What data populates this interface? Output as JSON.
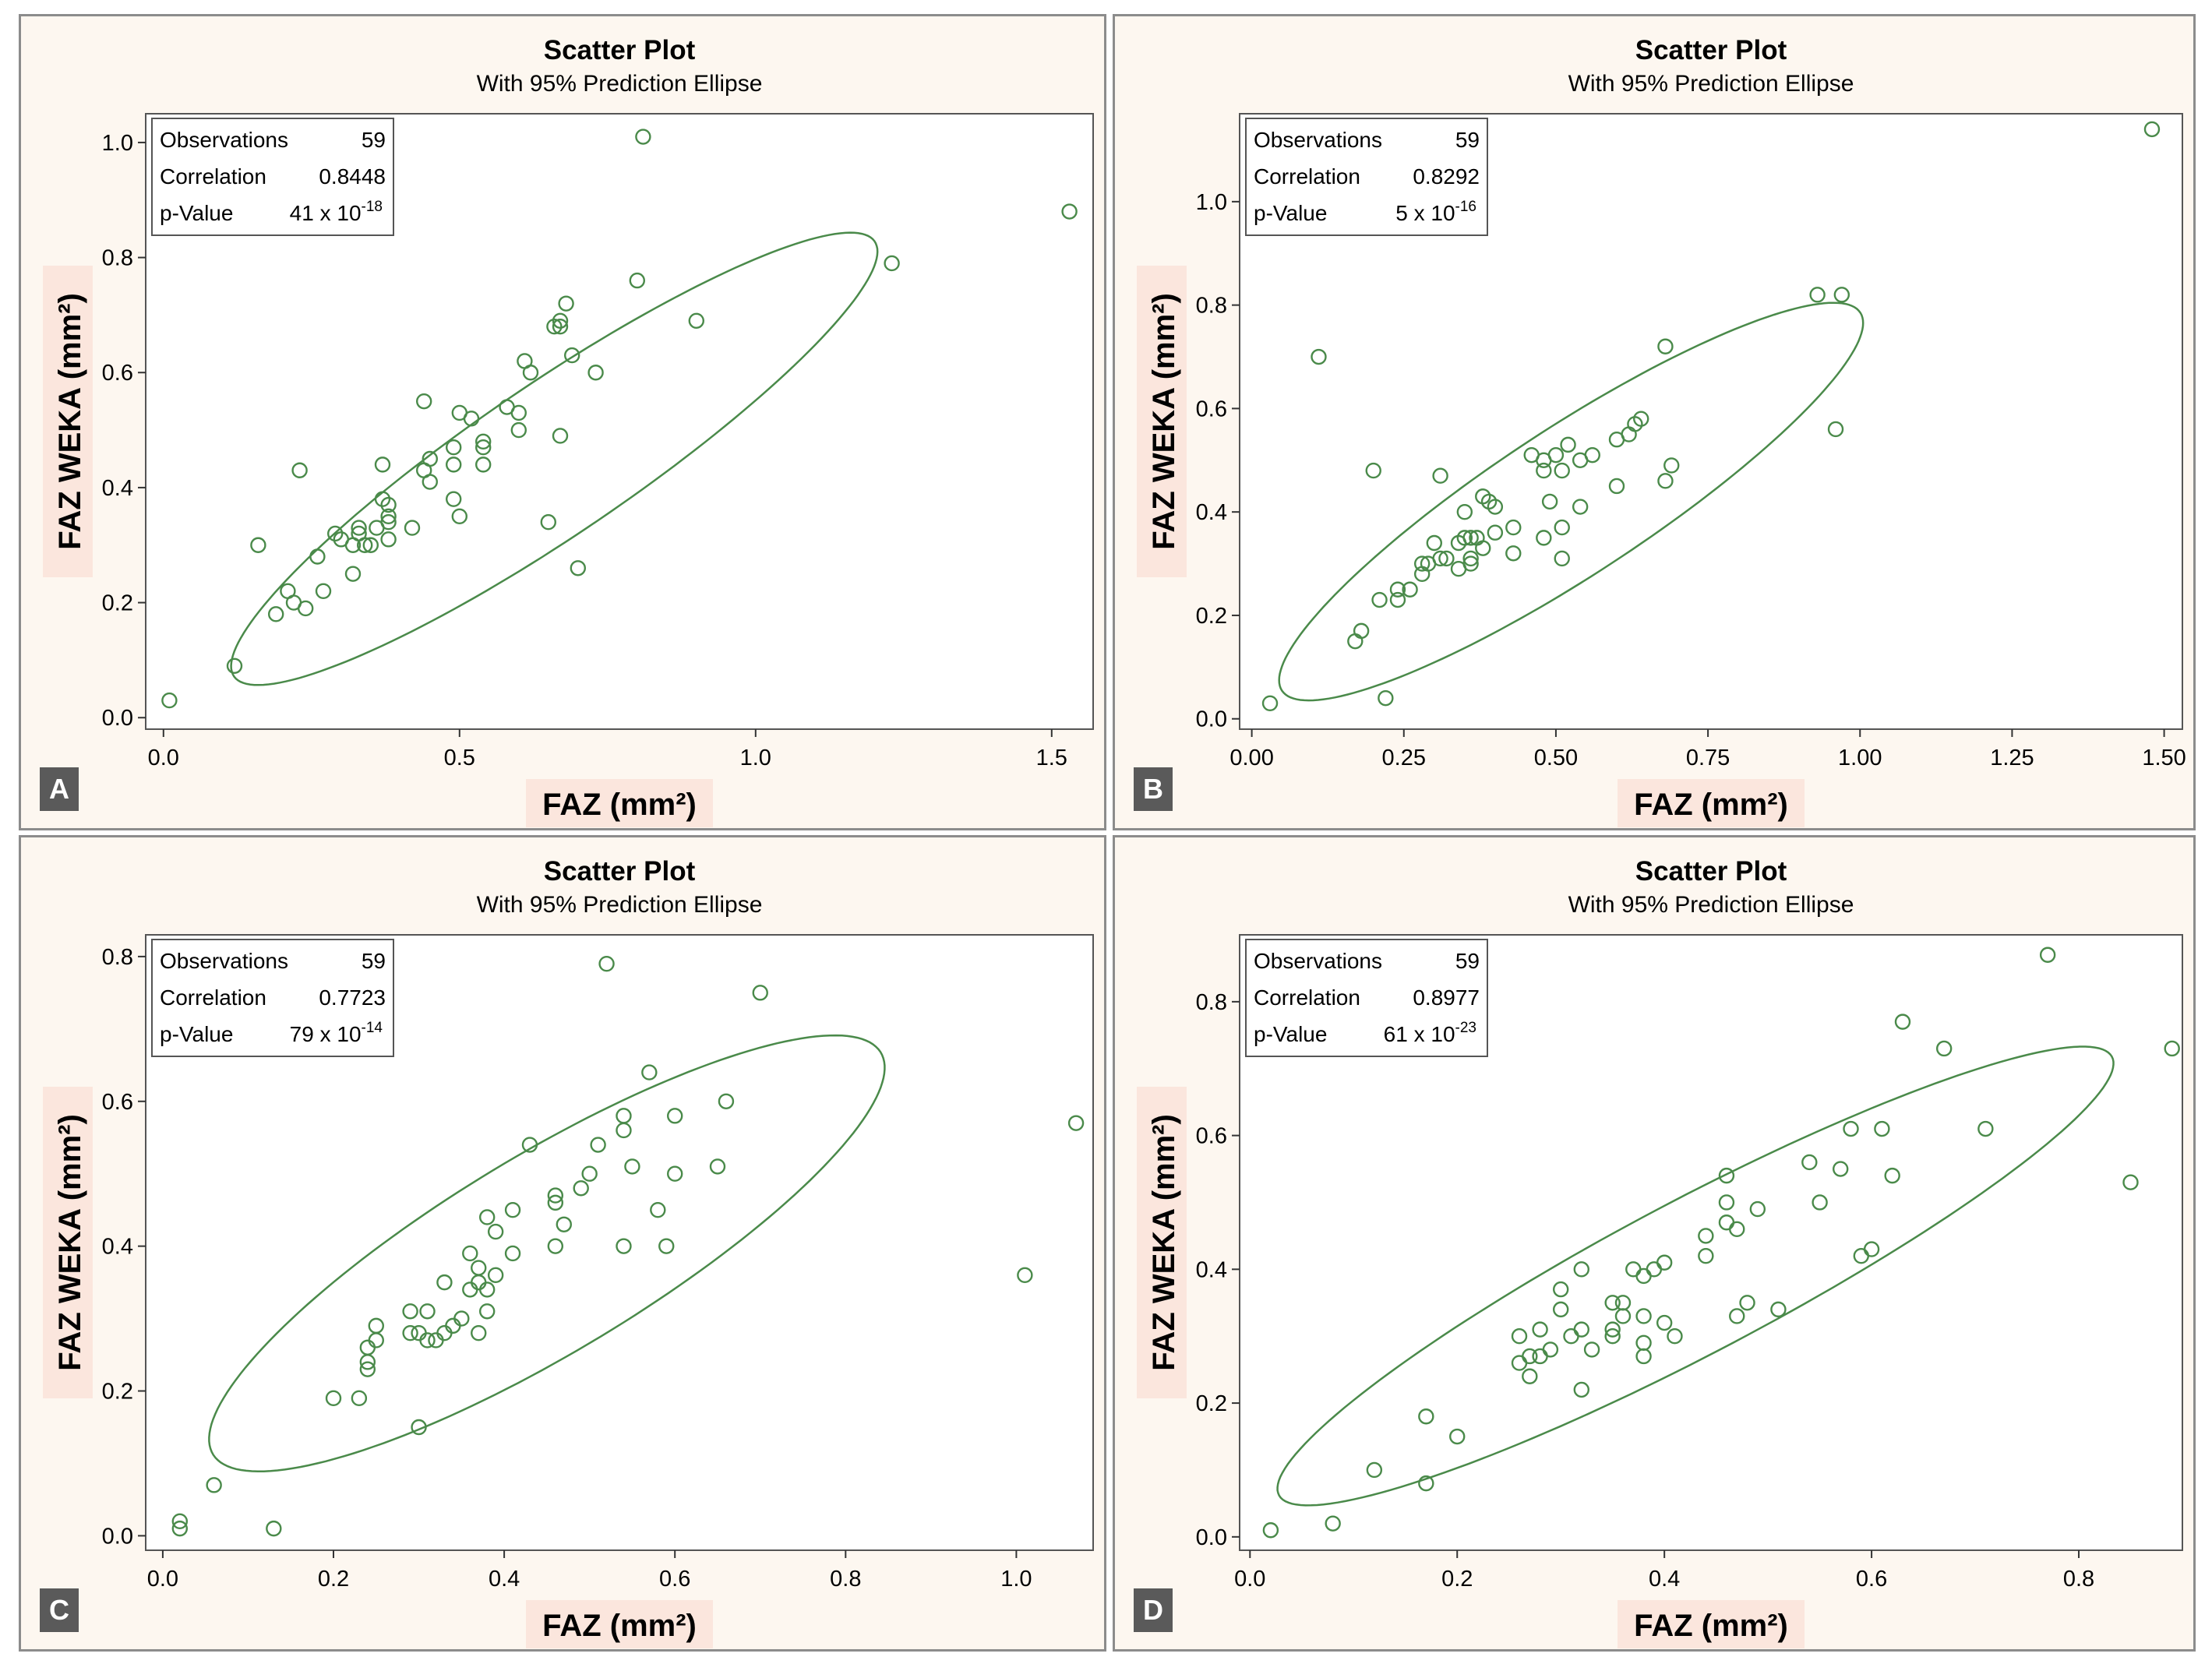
{
  "figure": {
    "colors": {
      "mark": "#4a8a4a",
      "panel_bg": "#fdf7f0",
      "plot_bg": "#ffffff",
      "label_bg": "#fbe6dd",
      "letter_bg": "#5a5a5a"
    }
  },
  "chart_data": [
    {
      "panel_letter": "A",
      "type": "scatter",
      "title": "Scatter Plot",
      "subtitle": "With 95% Prediction Ellipse",
      "xlabel": "FAZ (mm²)",
      "ylabel": "FAZ WEKA (mm²)",
      "xlim": [
        -0.03,
        1.57
      ],
      "ylim": [
        -0.02,
        1.05
      ],
      "xticks": [
        0,
        0.5,
        1,
        1.5
      ],
      "xtick_labels": [
        "0.0",
        "0.5",
        "1.0",
        "1.5"
      ],
      "yticks": [
        0,
        0.2,
        0.4,
        0.6,
        0.8,
        1.0
      ],
      "ytick_labels": [
        "0.0",
        "0.2",
        "0.4",
        "0.6",
        "0.8",
        "1.0"
      ],
      "stats": {
        "observations_label": "Observations",
        "observations": "59",
        "correlation_label": "Correlation",
        "correlation": "0.8448",
        "pvalue_label": "p-Value",
        "pvalue_base": "41 x 10",
        "pvalue_exp": "-18"
      },
      "ellipse": {
        "cx": 0.66,
        "cy": 0.45,
        "rx": 0.66,
        "ry": 0.13,
        "angle_deg": 35
      },
      "points": [
        [
          0.01,
          0.03
        ],
        [
          0.12,
          0.09
        ],
        [
          0.16,
          0.3
        ],
        [
          0.19,
          0.18
        ],
        [
          0.21,
          0.22
        ],
        [
          0.22,
          0.2
        ],
        [
          0.23,
          0.43
        ],
        [
          0.24,
          0.19
        ],
        [
          0.26,
          0.28
        ],
        [
          0.27,
          0.22
        ],
        [
          0.29,
          0.32
        ],
        [
          0.3,
          0.31
        ],
        [
          0.32,
          0.3
        ],
        [
          0.32,
          0.25
        ],
        [
          0.33,
          0.32
        ],
        [
          0.33,
          0.33
        ],
        [
          0.34,
          0.3
        ],
        [
          0.35,
          0.3
        ],
        [
          0.36,
          0.33
        ],
        [
          0.37,
          0.44
        ],
        [
          0.37,
          0.38
        ],
        [
          0.38,
          0.37
        ],
        [
          0.38,
          0.35
        ],
        [
          0.38,
          0.31
        ],
        [
          0.38,
          0.34
        ],
        [
          0.42,
          0.33
        ],
        [
          0.44,
          0.55
        ],
        [
          0.44,
          0.43
        ],
        [
          0.45,
          0.41
        ],
        [
          0.45,
          0.45
        ],
        [
          0.49,
          0.47
        ],
        [
          0.49,
          0.44
        ],
        [
          0.49,
          0.38
        ],
        [
          0.5,
          0.35
        ],
        [
          0.5,
          0.53
        ],
        [
          0.52,
          0.52
        ],
        [
          0.54,
          0.48
        ],
        [
          0.54,
          0.47
        ],
        [
          0.54,
          0.44
        ],
        [
          0.58,
          0.54
        ],
        [
          0.6,
          0.53
        ],
        [
          0.6,
          0.5
        ],
        [
          0.61,
          0.62
        ],
        [
          0.62,
          0.6
        ],
        [
          0.65,
          0.34
        ],
        [
          0.66,
          0.68
        ],
        [
          0.67,
          0.69
        ],
        [
          0.67,
          0.68
        ],
        [
          0.67,
          0.49
        ],
        [
          0.68,
          0.72
        ],
        [
          0.69,
          0.63
        ],
        [
          0.7,
          0.26
        ],
        [
          0.73,
          0.6
        ],
        [
          0.8,
          0.76
        ],
        [
          0.81,
          1.01
        ],
        [
          0.9,
          0.69
        ],
        [
          1.23,
          0.79
        ],
        [
          1.53,
          0.88
        ]
      ]
    },
    {
      "panel_letter": "B",
      "type": "scatter",
      "title": "Scatter Plot",
      "subtitle": "With 95% Prediction Ellipse",
      "xlabel": "FAZ (mm²)",
      "ylabel": "FAZ WEKA (mm²)",
      "xlim": [
        -0.02,
        1.53
      ],
      "ylim": [
        -0.02,
        1.17
      ],
      "xticks": [
        0,
        0.25,
        0.5,
        0.75,
        1.0,
        1.25,
        1.5
      ],
      "xtick_labels": [
        "0.00",
        "0.25",
        "0.50",
        "0.75",
        "1.00",
        "1.25",
        "1.50"
      ],
      "yticks": [
        0,
        0.2,
        0.4,
        0.6,
        0.8,
        1.0
      ],
      "ytick_labels": [
        "0.0",
        "0.2",
        "0.4",
        "0.6",
        "0.8",
        "1.0"
      ],
      "stats": {
        "observations_label": "Observations",
        "observations": "59",
        "correlation_label": "Correlation",
        "correlation": "0.8292",
        "pvalue_label": "p-Value",
        "pvalue_base": "5 x 10",
        "pvalue_exp": "-16"
      },
      "ellipse": {
        "cx": 0.525,
        "cy": 0.42,
        "rx": 0.6,
        "ry": 0.135,
        "angle_deg": 38
      },
      "points": [
        [
          0.03,
          0.03
        ],
        [
          0.11,
          0.7
        ],
        [
          0.17,
          0.15
        ],
        [
          0.18,
          0.17
        ],
        [
          0.2,
          0.48
        ],
        [
          0.21,
          0.23
        ],
        [
          0.22,
          0.04
        ],
        [
          0.24,
          0.23
        ],
        [
          0.24,
          0.25
        ],
        [
          0.26,
          0.25
        ],
        [
          0.28,
          0.28
        ],
        [
          0.28,
          0.3
        ],
        [
          0.29,
          0.3
        ],
        [
          0.3,
          0.34
        ],
        [
          0.31,
          0.47
        ],
        [
          0.31,
          0.31
        ],
        [
          0.32,
          0.31
        ],
        [
          0.34,
          0.29
        ],
        [
          0.34,
          0.34
        ],
        [
          0.35,
          0.35
        ],
        [
          0.35,
          0.4
        ],
        [
          0.36,
          0.35
        ],
        [
          0.36,
          0.31
        ],
        [
          0.36,
          0.3
        ],
        [
          0.37,
          0.35
        ],
        [
          0.38,
          0.33
        ],
        [
          0.38,
          0.43
        ],
        [
          0.39,
          0.42
        ],
        [
          0.4,
          0.41
        ],
        [
          0.4,
          0.36
        ],
        [
          0.43,
          0.37
        ],
        [
          0.43,
          0.32
        ],
        [
          0.46,
          0.51
        ],
        [
          0.48,
          0.5
        ],
        [
          0.48,
          0.48
        ],
        [
          0.48,
          0.35
        ],
        [
          0.49,
          0.42
        ],
        [
          0.5,
          0.51
        ],
        [
          0.51,
          0.48
        ],
        [
          0.51,
          0.37
        ],
        [
          0.51,
          0.31
        ],
        [
          0.52,
          0.53
        ],
        [
          0.54,
          0.41
        ],
        [
          0.54,
          0.5
        ],
        [
          0.56,
          0.51
        ],
        [
          0.6,
          0.45
        ],
        [
          0.6,
          0.54
        ],
        [
          0.62,
          0.55
        ],
        [
          0.63,
          0.57
        ],
        [
          0.64,
          0.58
        ],
        [
          0.68,
          0.72
        ],
        [
          0.68,
          0.46
        ],
        [
          0.69,
          0.49
        ],
        [
          0.93,
          0.82
        ],
        [
          0.96,
          0.56
        ],
        [
          0.97,
          0.82
        ],
        [
          1.48,
          1.14
        ]
      ]
    },
    {
      "panel_letter": "C",
      "type": "scatter",
      "title": "Scatter Plot",
      "subtitle": "With 95% Prediction Ellipse",
      "xlabel": "FAZ (mm²)",
      "ylabel": "FAZ WEKA (mm²)",
      "xlim": [
        -0.02,
        1.09
      ],
      "ylim": [
        -0.02,
        0.83
      ],
      "xticks": [
        0,
        0.2,
        0.4,
        0.6,
        0.8,
        1.0
      ],
      "xtick_labels": [
        "0.0",
        "0.2",
        "0.4",
        "0.6",
        "0.8",
        "1.0"
      ],
      "yticks": [
        0,
        0.2,
        0.4,
        0.6,
        0.8
      ],
      "ytick_labels": [
        "0.0",
        "0.2",
        "0.4",
        "0.6",
        "0.8"
      ],
      "stats": {
        "observations_label": "Observations",
        "observations": "59",
        "correlation_label": "Correlation",
        "correlation": "0.7723",
        "pvalue_label": "p-Value",
        "pvalue_base": "79 x 10",
        "pvalue_exp": "-14"
      },
      "ellipse": {
        "cx": 0.45,
        "cy": 0.39,
        "rx": 0.48,
        "ry": 0.13,
        "angle_deg": 36
      },
      "points": [
        [
          0.02,
          0.02
        ],
        [
          0.02,
          0.01
        ],
        [
          0.06,
          0.07
        ],
        [
          0.13,
          0.01
        ],
        [
          0.2,
          0.19
        ],
        [
          0.23,
          0.19
        ],
        [
          0.24,
          0.26
        ],
        [
          0.24,
          0.24
        ],
        [
          0.24,
          0.23
        ],
        [
          0.25,
          0.27
        ],
        [
          0.25,
          0.29
        ],
        [
          0.29,
          0.31
        ],
        [
          0.29,
          0.28
        ],
        [
          0.3,
          0.15
        ],
        [
          0.3,
          0.28
        ],
        [
          0.31,
          0.27
        ],
        [
          0.31,
          0.31
        ],
        [
          0.32,
          0.27
        ],
        [
          0.33,
          0.35
        ],
        [
          0.33,
          0.28
        ],
        [
          0.34,
          0.29
        ],
        [
          0.35,
          0.3
        ],
        [
          0.36,
          0.39
        ],
        [
          0.36,
          0.34
        ],
        [
          0.37,
          0.37
        ],
        [
          0.37,
          0.35
        ],
        [
          0.37,
          0.28
        ],
        [
          0.38,
          0.44
        ],
        [
          0.38,
          0.34
        ],
        [
          0.38,
          0.31
        ],
        [
          0.39,
          0.36
        ],
        [
          0.39,
          0.42
        ],
        [
          0.41,
          0.45
        ],
        [
          0.41,
          0.39
        ],
        [
          0.43,
          0.54
        ],
        [
          0.46,
          0.47
        ],
        [
          0.46,
          0.46
        ],
        [
          0.46,
          0.4
        ],
        [
          0.47,
          0.43
        ],
        [
          0.49,
          0.48
        ],
        [
          0.5,
          0.5
        ],
        [
          0.51,
          0.54
        ],
        [
          0.52,
          0.79
        ],
        [
          0.54,
          0.58
        ],
        [
          0.54,
          0.56
        ],
        [
          0.54,
          0.4
        ],
        [
          0.55,
          0.51
        ],
        [
          0.57,
          0.64
        ],
        [
          0.58,
          0.45
        ],
        [
          0.59,
          0.4
        ],
        [
          0.6,
          0.58
        ],
        [
          0.6,
          0.5
        ],
        [
          0.65,
          0.51
        ],
        [
          0.66,
          0.6
        ],
        [
          0.7,
          0.75
        ],
        [
          1.01,
          0.36
        ],
        [
          1.07,
          0.57
        ]
      ]
    },
    {
      "panel_letter": "D",
      "type": "scatter",
      "title": "Scatter Plot",
      "subtitle": "With 95% Prediction Ellipse",
      "xlabel": "FAZ (mm²)",
      "ylabel": "FAZ WEKA (mm²)",
      "xlim": [
        -0.01,
        0.9
      ],
      "ylim": [
        -0.02,
        0.9
      ],
      "xticks": [
        0,
        0.2,
        0.4,
        0.6,
        0.8
      ],
      "xtick_labels": [
        "0.0",
        "0.2",
        "0.4",
        "0.6",
        "0.8"
      ],
      "yticks": [
        0,
        0.2,
        0.4,
        0.6,
        0.8
      ],
      "ytick_labels": [
        "0.0",
        "0.2",
        "0.4",
        "0.6",
        "0.8"
      ],
      "stats": {
        "observations_label": "Observations",
        "observations": "59",
        "correlation_label": "Correlation",
        "correlation": "0.8977",
        "pvalue_label": "p-Value",
        "pvalue_base": "61 x 10",
        "pvalue_exp": "-23"
      },
      "ellipse": {
        "cx": 0.43,
        "cy": 0.39,
        "rx": 0.52,
        "ry": 0.1,
        "angle_deg": 40
      },
      "points": [
        [
          0.02,
          0.01
        ],
        [
          0.08,
          0.02
        ],
        [
          0.12,
          0.1
        ],
        [
          0.17,
          0.18
        ],
        [
          0.17,
          0.08
        ],
        [
          0.2,
          0.15
        ],
        [
          0.26,
          0.3
        ],
        [
          0.26,
          0.26
        ],
        [
          0.27,
          0.24
        ],
        [
          0.27,
          0.27
        ],
        [
          0.28,
          0.27
        ],
        [
          0.28,
          0.31
        ],
        [
          0.29,
          0.28
        ],
        [
          0.3,
          0.37
        ],
        [
          0.3,
          0.34
        ],
        [
          0.31,
          0.3
        ],
        [
          0.32,
          0.4
        ],
        [
          0.32,
          0.31
        ],
        [
          0.32,
          0.22
        ],
        [
          0.33,
          0.28
        ],
        [
          0.35,
          0.35
        ],
        [
          0.35,
          0.31
        ],
        [
          0.35,
          0.3
        ],
        [
          0.36,
          0.33
        ],
        [
          0.36,
          0.35
        ],
        [
          0.37,
          0.4
        ],
        [
          0.38,
          0.39
        ],
        [
          0.38,
          0.33
        ],
        [
          0.38,
          0.29
        ],
        [
          0.38,
          0.27
        ],
        [
          0.39,
          0.4
        ],
        [
          0.4,
          0.41
        ],
        [
          0.4,
          0.32
        ],
        [
          0.41,
          0.3
        ],
        [
          0.44,
          0.45
        ],
        [
          0.44,
          0.42
        ],
        [
          0.46,
          0.54
        ],
        [
          0.46,
          0.5
        ],
        [
          0.46,
          0.47
        ],
        [
          0.47,
          0.46
        ],
        [
          0.47,
          0.33
        ],
        [
          0.48,
          0.35
        ],
        [
          0.49,
          0.49
        ],
        [
          0.51,
          0.34
        ],
        [
          0.54,
          0.56
        ],
        [
          0.55,
          0.5
        ],
        [
          0.57,
          0.55
        ],
        [
          0.58,
          0.61
        ],
        [
          0.59,
          0.42
        ],
        [
          0.6,
          0.43
        ],
        [
          0.61,
          0.61
        ],
        [
          0.62,
          0.54
        ],
        [
          0.63,
          0.77
        ],
        [
          0.67,
          0.73
        ],
        [
          0.71,
          0.61
        ],
        [
          0.77,
          0.87
        ],
        [
          0.85,
          0.53
        ],
        [
          0.89,
          0.73
        ]
      ]
    }
  ]
}
